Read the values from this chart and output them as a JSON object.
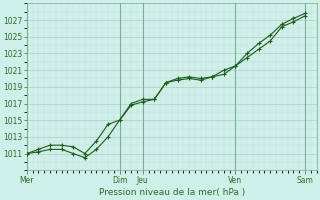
{
  "xlabel": "Pression niveau de la mer( hPa )",
  "background_color": "#cef0e8",
  "grid_major_color": "#b8d8d0",
  "grid_minor_color": "#d8ece8",
  "line_color": "#1a5c1a",
  "ylim": [
    1009.5,
    1028.5
  ],
  "yticks": [
    1011,
    1013,
    1015,
    1017,
    1019,
    1021,
    1023,
    1025,
    1027
  ],
  "major_xtick_positions": [
    0,
    96,
    120,
    216,
    288
  ],
  "major_xtick_labels": [
    "Mer",
    "Dim",
    "Jeu",
    "Ven",
    "Sam"
  ],
  "xmax": 300,
  "line1_x": [
    0,
    12,
    24,
    36,
    48,
    60,
    72,
    84,
    96,
    108,
    120,
    132,
    144,
    156,
    168,
    180,
    192,
    204,
    216,
    228,
    240,
    252,
    264,
    276,
    288
  ],
  "line1_y": [
    1011.0,
    1011.2,
    1011.5,
    1011.5,
    1011.0,
    1010.5,
    1011.5,
    1013.0,
    1015.0,
    1016.8,
    1017.2,
    1017.5,
    1019.5,
    1019.8,
    1020.0,
    1019.8,
    1020.2,
    1020.5,
    1021.5,
    1022.5,
    1023.5,
    1024.5,
    1026.2,
    1026.8,
    1027.5
  ],
  "line2_x": [
    0,
    12,
    24,
    36,
    48,
    60,
    72,
    84,
    96,
    108,
    120,
    132,
    144,
    156,
    168,
    180,
    192,
    204,
    216,
    228,
    240,
    252,
    264,
    276,
    288
  ],
  "line2_y": [
    1011.0,
    1011.5,
    1012.0,
    1012.0,
    1011.8,
    1011.0,
    1012.5,
    1014.5,
    1015.0,
    1017.0,
    1017.5,
    1017.5,
    1019.5,
    1020.0,
    1020.2,
    1020.0,
    1020.2,
    1021.0,
    1021.5,
    1023.0,
    1024.2,
    1025.2,
    1026.5,
    1027.2,
    1027.8
  ]
}
